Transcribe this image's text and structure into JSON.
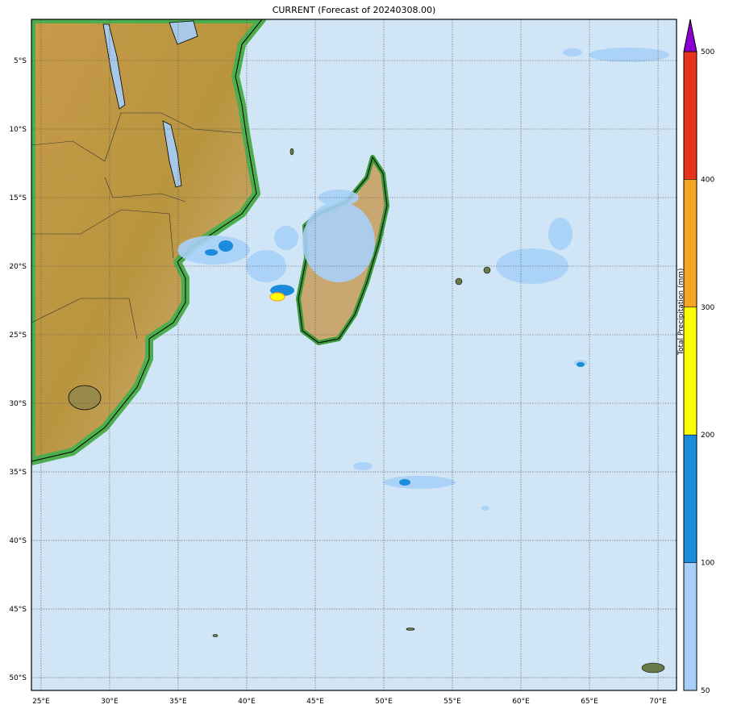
{
  "title": "CURRENT (Forecast of 20240308.00)",
  "map": {
    "extent_lon": [
      24.3,
      71.35
    ],
    "extent_lat": [
      -2.0,
      -50.94
    ],
    "lon_ticks": [
      {
        "v": 25,
        "label": "25°E"
      },
      {
        "v": 30,
        "label": "30°E"
      },
      {
        "v": 35,
        "label": "35°E"
      },
      {
        "v": 40,
        "label": "40°E"
      },
      {
        "v": 45,
        "label": "45°E"
      },
      {
        "v": 50,
        "label": "50°E"
      },
      {
        "v": 55,
        "label": "55°E"
      },
      {
        "v": 60,
        "label": "60°E"
      },
      {
        "v": 65,
        "label": "65°E"
      },
      {
        "v": 70,
        "label": "70°E"
      }
    ],
    "lat_ticks": [
      {
        "v": -5,
        "label": "5°S"
      },
      {
        "v": -10,
        "label": "10°S"
      },
      {
        "v": -15,
        "label": "15°S"
      },
      {
        "v": -20,
        "label": "20°S"
      },
      {
        "v": -25,
        "label": "25°S"
      },
      {
        "v": -30,
        "label": "30°S"
      },
      {
        "v": -35,
        "label": "35°S"
      },
      {
        "v": -40,
        "label": "40°S"
      },
      {
        "v": -45,
        "label": "45°S"
      },
      {
        "v": -50,
        "label": "50°S"
      }
    ],
    "ocean_color": "#d0e6f6",
    "land_color": "#c4a058",
    "grid": true
  },
  "colorbar": {
    "label": "Total Precipitation (mm)",
    "levels": [
      50,
      100,
      200,
      300,
      400,
      500
    ],
    "colors": [
      "#a8d0f8",
      "#1a8cdb",
      "#ffff00",
      "#f5a623",
      "#e8321e"
    ],
    "over_color": "#8b00d0",
    "extend": "max"
  }
}
